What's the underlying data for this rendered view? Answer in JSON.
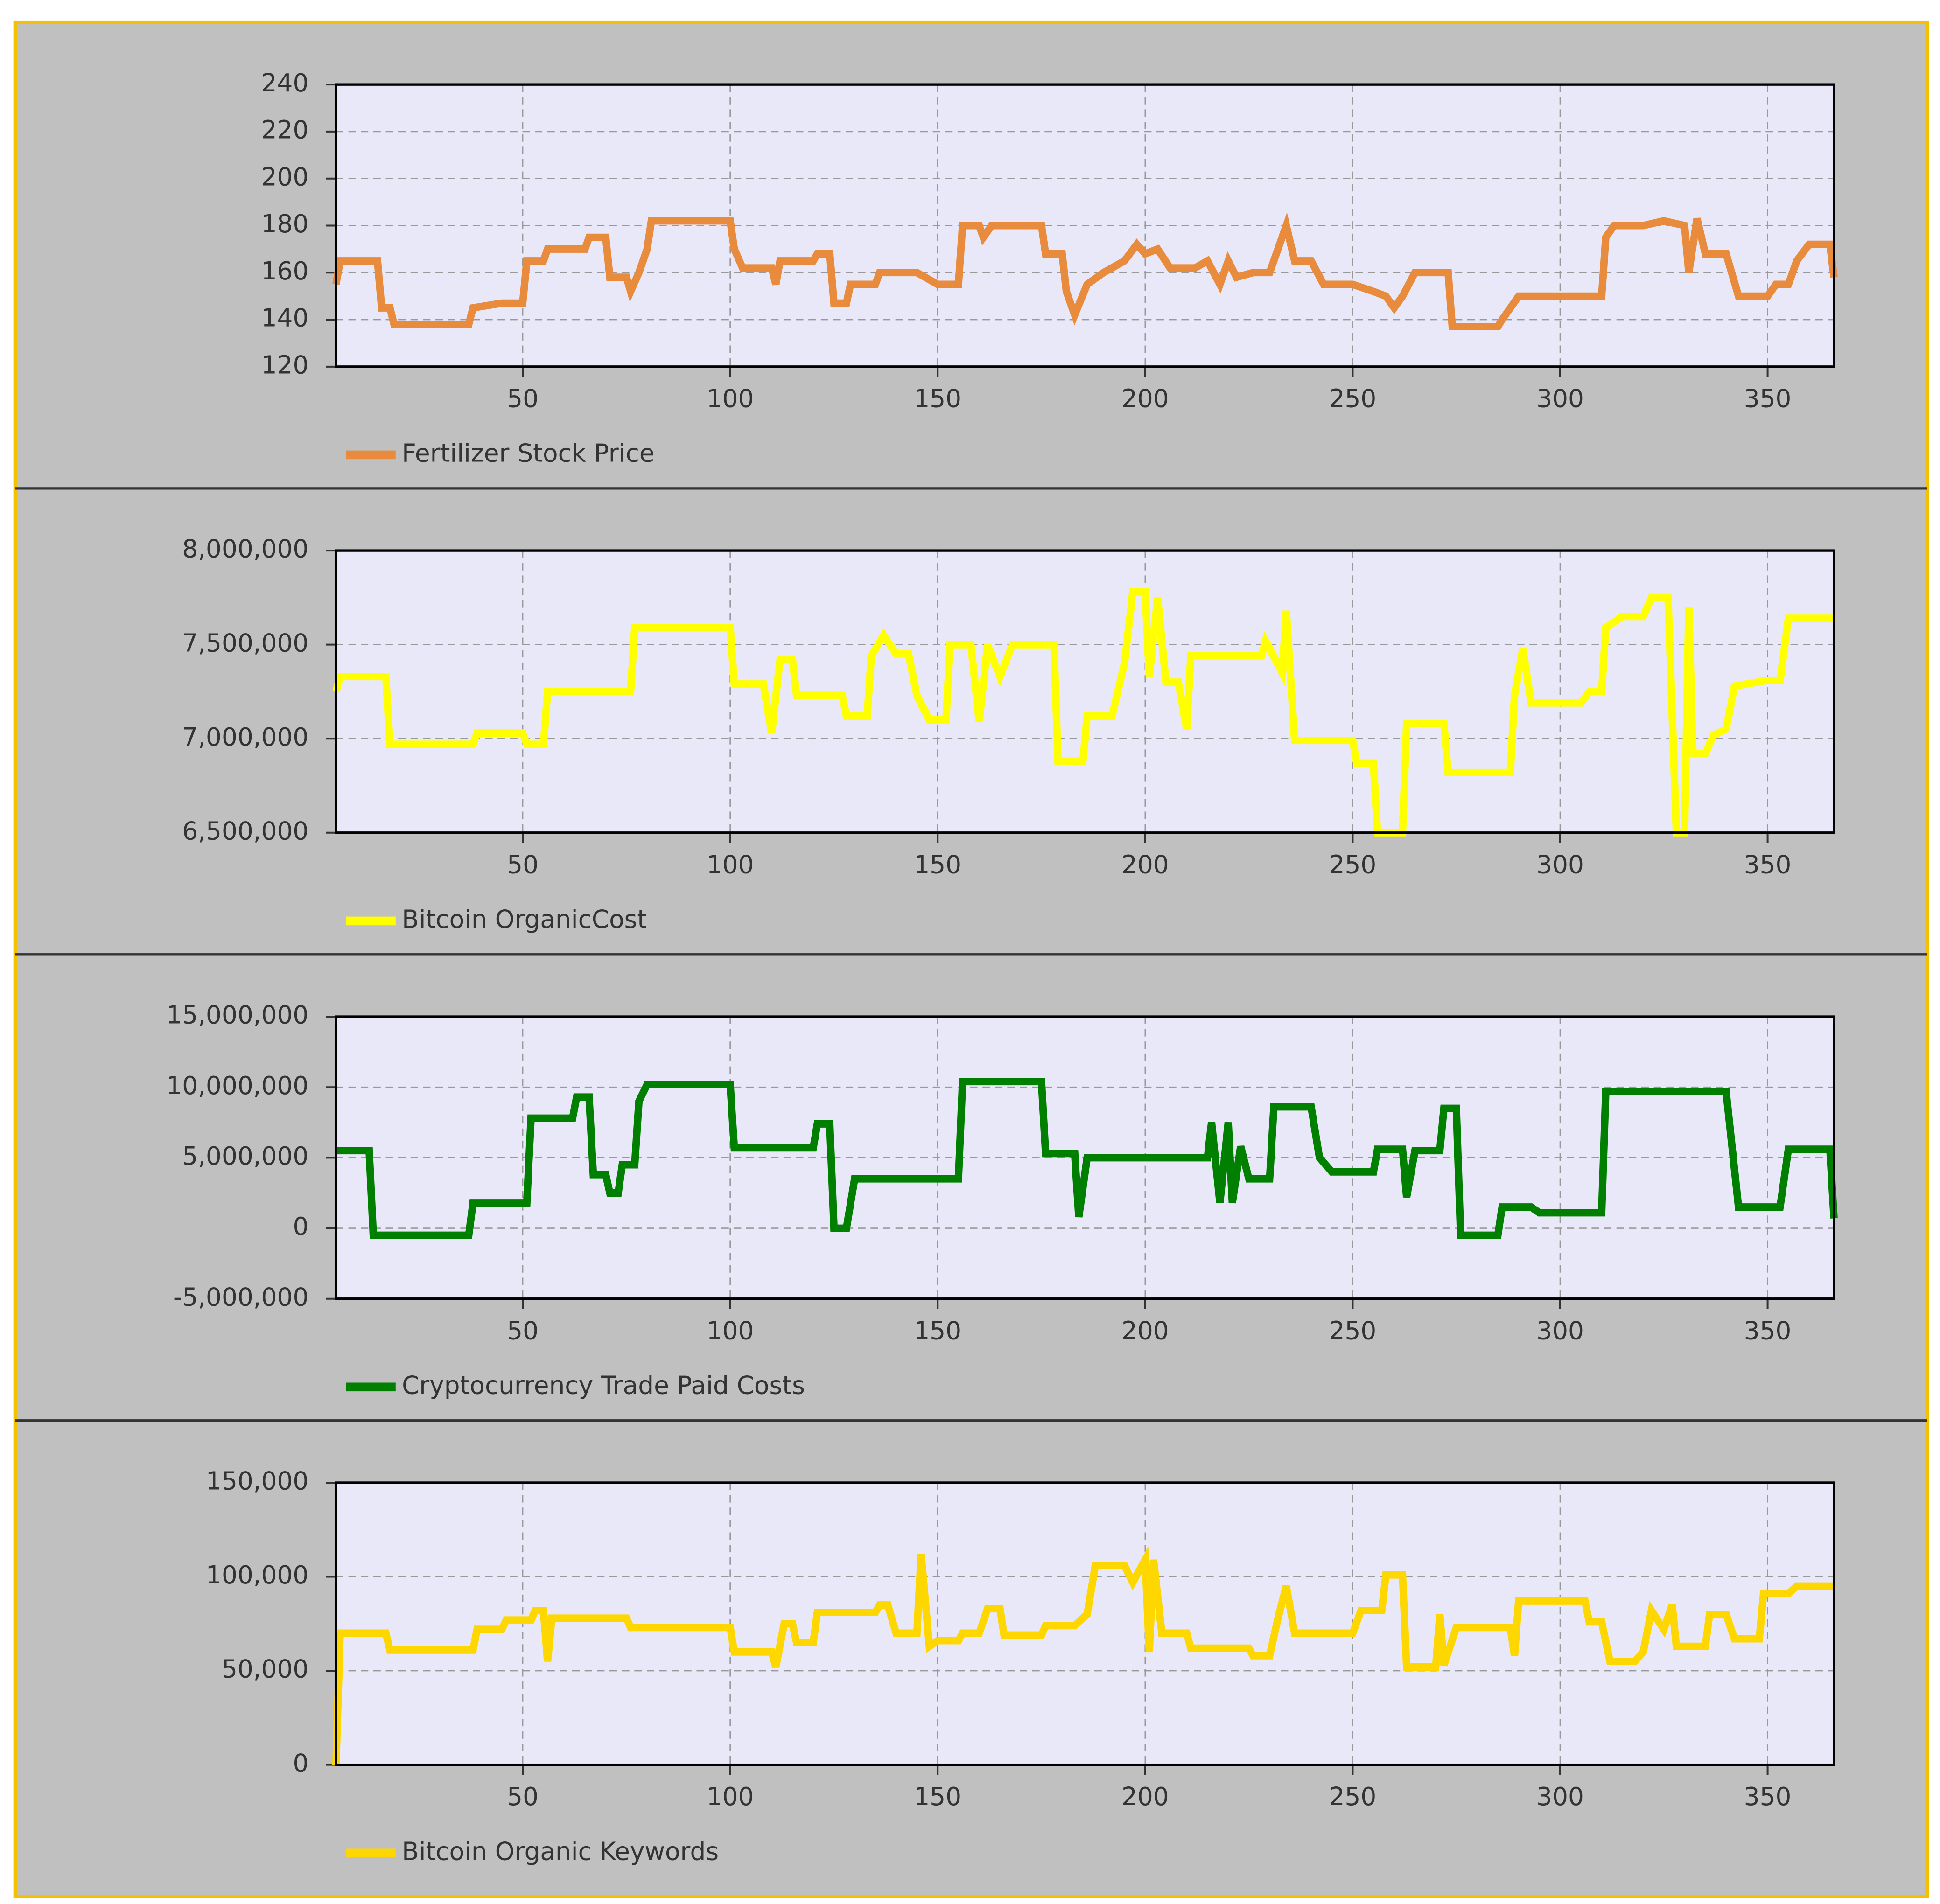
{
  "chart_data": [
    {
      "type": "line",
      "x": [
        5,
        6,
        15,
        16,
        18,
        19,
        37,
        38,
        45,
        50,
        51,
        55,
        56,
        65,
        66,
        70,
        71,
        75,
        76,
        78,
        80,
        81,
        100,
        101,
        103,
        110,
        111,
        112,
        120,
        121,
        124,
        125,
        128,
        129,
        135,
        136,
        145,
        150,
        155,
        156,
        160,
        161,
        163,
        175,
        176,
        180,
        181,
        183,
        186,
        190,
        195,
        198,
        200,
        203,
        206,
        212,
        215,
        218,
        220,
        222,
        226,
        230,
        232,
        234,
        236,
        240,
        243,
        250,
        255,
        258,
        260,
        262,
        265,
        273,
        274,
        285,
        286,
        290,
        310,
        311,
        313,
        320,
        325,
        330,
        331,
        333,
        335,
        340,
        343,
        350,
        352,
        355,
        357,
        360,
        365,
        366
      ],
      "series": [
        {
          "name": "Fertilizer Stock Price",
          "color": "#e88b3c",
          "values": [
            155,
            165,
            165,
            145,
            145,
            138,
            138,
            145,
            147,
            147,
            165,
            165,
            170,
            170,
            175,
            175,
            158,
            158,
            152,
            160,
            170,
            182,
            182,
            170,
            162,
            162,
            155,
            165,
            165,
            168,
            168,
            147,
            147,
            155,
            155,
            160,
            160,
            155,
            155,
            180,
            180,
            175,
            180,
            180,
            168,
            168,
            152,
            142,
            155,
            160,
            165,
            172,
            168,
            170,
            162,
            162,
            165,
            155,
            165,
            158,
            160,
            160,
            170,
            180,
            165,
            165,
            155,
            155,
            152,
            150,
            145,
            150,
            160,
            160,
            137,
            137,
            140,
            150,
            150,
            175,
            180,
            180,
            182,
            180,
            160,
            183,
            168,
            168,
            150,
            150,
            155,
            155,
            165,
            172,
            172,
            158
          ]
        }
      ],
      "xlim": [
        5,
        366
      ],
      "xticks": [
        50,
        100,
        150,
        200,
        250,
        300,
        350
      ],
      "ylim": [
        120,
        240
      ],
      "yticks": [
        120,
        140,
        160,
        180,
        200,
        220,
        240
      ],
      "grid": true
    },
    {
      "type": "line",
      "x": [
        5,
        6,
        17,
        18,
        38,
        39,
        50,
        51,
        55,
        56,
        76,
        77,
        100,
        101,
        108,
        110,
        112,
        115,
        116,
        127,
        128,
        133,
        134,
        137,
        140,
        143,
        145,
        148,
        152,
        153,
        158,
        160,
        162,
        165,
        168,
        178,
        179,
        185,
        186,
        192,
        195,
        197,
        200,
        201,
        203,
        205,
        208,
        210,
        211,
        228,
        229,
        233,
        234,
        236,
        250,
        251,
        255,
        256,
        262,
        263,
        272,
        273,
        288,
        289,
        291,
        293,
        305,
        307,
        310,
        311,
        315,
        320,
        322,
        326,
        328,
        330,
        331,
        332,
        335,
        337,
        340,
        342,
        350,
        353,
        355,
        366
      ],
      "series": [
        {
          "name": "Bitcoin OrganicCost",
          "color": "#ffff00",
          "values": [
            7250000,
            7330000,
            7330000,
            6970000,
            6970000,
            7030000,
            7030000,
            6970000,
            6970000,
            7250000,
            7250000,
            7590000,
            7590000,
            7290000,
            7290000,
            7030000,
            7420000,
            7420000,
            7230000,
            7230000,
            7120000,
            7120000,
            7440000,
            7550000,
            7450000,
            7450000,
            7230000,
            7100000,
            7100000,
            7500000,
            7500000,
            7090000,
            7500000,
            7330000,
            7500000,
            7500000,
            6880000,
            6880000,
            7120000,
            7120000,
            7400000,
            7780000,
            7780000,
            7330000,
            7750000,
            7300000,
            7300000,
            7050000,
            7440000,
            7440000,
            7520000,
            7350000,
            7680000,
            6990000,
            6990000,
            6870000,
            6870000,
            6500000,
            6500000,
            7080000,
            7080000,
            6820000,
            6820000,
            7230000,
            7480000,
            7190000,
            7190000,
            7250000,
            7250000,
            7590000,
            7650000,
            7650000,
            7750000,
            7750000,
            6500000,
            6500000,
            7700000,
            6920000,
            6920000,
            7020000,
            7050000,
            7280000,
            7310000,
            7310000,
            7640000,
            7640000
          ]
        }
      ],
      "xlim": [
        5,
        366
      ],
      "xticks": [
        50,
        100,
        150,
        200,
        250,
        300,
        350
      ],
      "ylim": [
        6500000,
        8000000
      ],
      "yticks": [
        {
          "value": 6500000,
          "label": "6,500,000"
        },
        {
          "value": 7000000,
          "label": "7,000,000"
        },
        {
          "value": 7500000,
          "label": "7,500,000"
        },
        {
          "value": 8000000,
          "label": "8,000,000"
        }
      ],
      "grid": true
    },
    {
      "type": "line",
      "x": [
        5,
        6,
        13,
        14,
        37,
        38,
        51,
        52,
        62,
        63,
        66,
        67,
        70,
        71,
        73,
        74,
        77,
        78,
        80,
        100,
        101,
        120,
        121,
        124,
        125,
        128,
        130,
        155,
        156,
        175,
        176,
        183,
        184,
        186,
        215,
        216,
        218,
        220,
        221,
        223,
        225,
        230,
        231,
        240,
        242,
        245,
        255,
        256,
        262,
        263,
        265,
        271,
        272,
        275,
        276,
        285,
        286,
        293,
        295,
        310,
        311,
        340,
        343,
        353,
        355,
        365,
        366
      ],
      "series": [
        {
          "name": "Cryptocurrency Trade Paid Costs",
          "color": "#007f00",
          "values": [
            5500000,
            5500000,
            5500000,
            -500000,
            -500000,
            1800000,
            1800000,
            7800000,
            7800000,
            9300000,
            9300000,
            3800000,
            3800000,
            2500000,
            2500000,
            4500000,
            4500000,
            9000000,
            10200000,
            10200000,
            5700000,
            5700000,
            7400000,
            7400000,
            0,
            0,
            3500000,
            3500000,
            10400000,
            10400000,
            5300000,
            5300000,
            800000,
            5000000,
            5000000,
            7500000,
            1800000,
            7500000,
            1800000,
            5800000,
            3500000,
            3500000,
            8600000,
            8600000,
            5000000,
            4000000,
            4000000,
            5600000,
            5600000,
            2200000,
            5500000,
            5500000,
            8500000,
            8500000,
            -500000,
            -500000,
            1500000,
            1500000,
            1100000,
            1100000,
            9700000,
            9700000,
            1500000,
            1500000,
            5600000,
            5600000,
            700000
          ]
        }
      ],
      "xlim": [
        5,
        366
      ],
      "xticks": [
        50,
        100,
        150,
        200,
        250,
        300,
        350
      ],
      "ylim": [
        -5000000,
        15000000
      ],
      "yticks": [
        {
          "value": -5000000,
          "label": "-5,000,000"
        },
        0,
        {
          "value": 5000000,
          "label": "5,000,000"
        },
        {
          "value": 10000000,
          "label": "10,000,000"
        },
        {
          "value": 15000000,
          "label": "15,000,000"
        }
      ],
      "grid": true
    },
    {
      "type": "line",
      "x": [
        5,
        6,
        17,
        18,
        38,
        39,
        45,
        46,
        52,
        53,
        55,
        56,
        57,
        75,
        76,
        100,
        101,
        110,
        111,
        113,
        115,
        116,
        120,
        121,
        135,
        136,
        138,
        140,
        145,
        146,
        148,
        150,
        155,
        156,
        160,
        162,
        165,
        166,
        175,
        176,
        183,
        186,
        188,
        195,
        197,
        200,
        201,
        202,
        204,
        210,
        211,
        225,
        226,
        230,
        232,
        234,
        236,
        250,
        252,
        257,
        258,
        262,
        263,
        270,
        271,
        272,
        275,
        288,
        289,
        290,
        306,
        307,
        310,
        312,
        318,
        320,
        322,
        325,
        327,
        328,
        335,
        336,
        340,
        342,
        348,
        349,
        355,
        357,
        366
      ],
      "series": [
        {
          "name": "Bitcoin Organic Keywords",
          "color": "#ffd700",
          "values": [
            0,
            70000,
            70000,
            61000,
            61000,
            72000,
            72000,
            77000,
            77000,
            82000,
            82000,
            55000,
            78000,
            78000,
            73000,
            73000,
            60000,
            60000,
            52000,
            75000,
            75000,
            65000,
            65000,
            81000,
            81000,
            85000,
            85000,
            70000,
            70000,
            112000,
            63000,
            66000,
            66000,
            70000,
            70000,
            83000,
            83000,
            69000,
            69000,
            74000,
            74000,
            80000,
            106000,
            106000,
            97000,
            109000,
            60000,
            109000,
            70000,
            70000,
            62000,
            62000,
            58000,
            58000,
            78000,
            95000,
            70000,
            70000,
            82000,
            82000,
            101000,
            101000,
            52000,
            52000,
            80000,
            53000,
            73000,
            73000,
            58000,
            87000,
            87000,
            76000,
            76000,
            55000,
            55000,
            60000,
            82000,
            72000,
            85000,
            63000,
            63000,
            80000,
            80000,
            67000,
            67000,
            91000,
            91000,
            95000,
            95000
          ]
        }
      ],
      "xlim": [
        5,
        366
      ],
      "xticks": [
        50,
        100,
        150,
        200,
        250,
        300,
        350
      ],
      "ylim": [
        0,
        150000
      ],
      "yticks": [
        0,
        {
          "value": 50000,
          "label": "50,000"
        },
        {
          "value": 100000,
          "label": "100,000"
        },
        {
          "value": 150000,
          "label": "150,000"
        }
      ],
      "grid": true
    }
  ]
}
